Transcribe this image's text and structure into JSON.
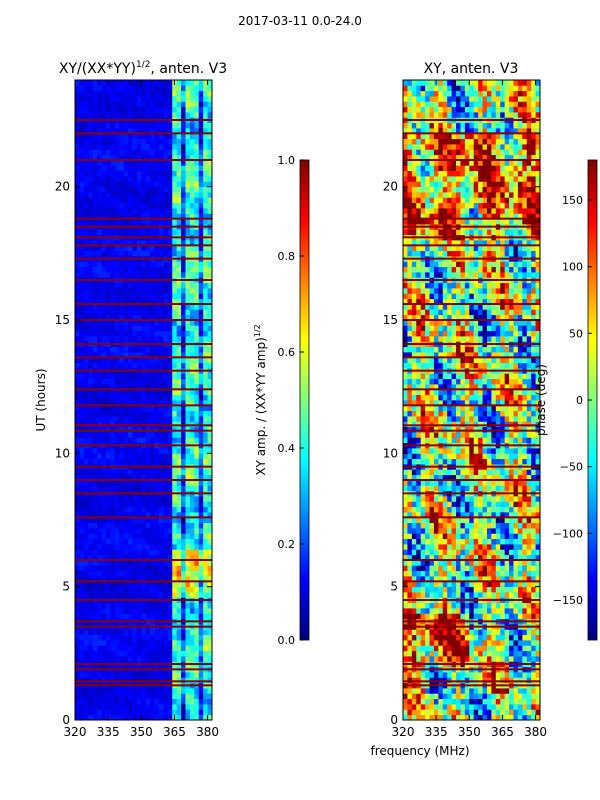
{
  "figure_title": "2017-03-11 0.0-24.0",
  "colors": {
    "flag_red": "#8b0000",
    "grid_black": "#000000",
    "jet": [
      "#00007f",
      "#0000ff",
      "#007fff",
      "#00ffff",
      "#7fff7f",
      "#ffff00",
      "#ff7f00",
      "#ff0000",
      "#7f0000"
    ]
  },
  "chart_data": [
    {
      "type": "heatmap",
      "name": "amplitude-ratio",
      "title_main": "XY/(XX*YY)",
      "title_sup": "1/2",
      "title_tail": ", anten. V3",
      "xlabel": "",
      "ylabel": "UT (hours)",
      "xlim": [
        320,
        382
      ],
      "ylim": [
        0,
        24
      ],
      "xticks": [
        320,
        335,
        350,
        365,
        380
      ],
      "yticks": [
        0,
        5,
        10,
        15,
        20
      ],
      "colorbar": {
        "label": "XY amp. / (XX*YY amp)",
        "label_sup": "1/2",
        "range": [
          0.0,
          1.0
        ],
        "ticks": [
          "0.0",
          "0.2",
          "0.4",
          "0.6",
          "0.8",
          "1.0"
        ]
      },
      "flagged_hours": [
        1.3,
        1.45,
        1.9,
        2.1,
        3.5,
        3.7,
        4.5,
        5.2,
        6.0,
        7.6,
        8.5,
        9.0,
        9.5,
        10.3,
        10.85,
        11.05,
        11.8,
        12.4,
        13.1,
        13.6,
        14.1,
        15.0,
        15.6,
        16.5,
        17.3,
        17.8,
        18.1,
        18.5,
        18.8,
        21.0,
        22.0,
        22.5
      ],
      "bright_band_x_start": 365,
      "notes": "Ratio near 0.05 below 363 MHz; 0.3-0.6 above 365 MHz; flagged rows at 1.0"
    },
    {
      "type": "heatmap",
      "name": "xy-phase",
      "title_main": "XY, anten. V3",
      "xlabel": "frequency (MHz)",
      "ylabel": "",
      "xlim": [
        320,
        382
      ],
      "ylim": [
        0,
        24
      ],
      "xticks": [
        320,
        335,
        350,
        365,
        380
      ],
      "yticks": [
        0,
        5,
        10,
        15,
        20
      ],
      "colorbar": {
        "label": "phase (deg)",
        "range": [
          -180,
          180
        ],
        "ticks": [
          "150",
          "100",
          "50",
          "0",
          "−50",
          "−100",
          "−150"
        ],
        "tick_values": [
          150,
          100,
          50,
          0,
          -50,
          -100,
          -150
        ]
      },
      "flagged_hours": [
        1.3,
        1.45,
        1.9,
        2.1,
        3.5,
        3.7,
        4.5,
        5.2,
        6.0,
        7.6,
        8.5,
        9.0,
        9.5,
        10.3,
        10.85,
        11.05,
        11.8,
        12.4,
        13.1,
        13.6,
        14.1,
        15.0,
        15.6,
        16.5,
        17.3,
        17.8,
        18.1,
        18.5,
        18.8,
        21.0,
        22.0,
        22.5
      ],
      "notes": "Noisy phase map spanning -180 to 180 deg"
    }
  ]
}
